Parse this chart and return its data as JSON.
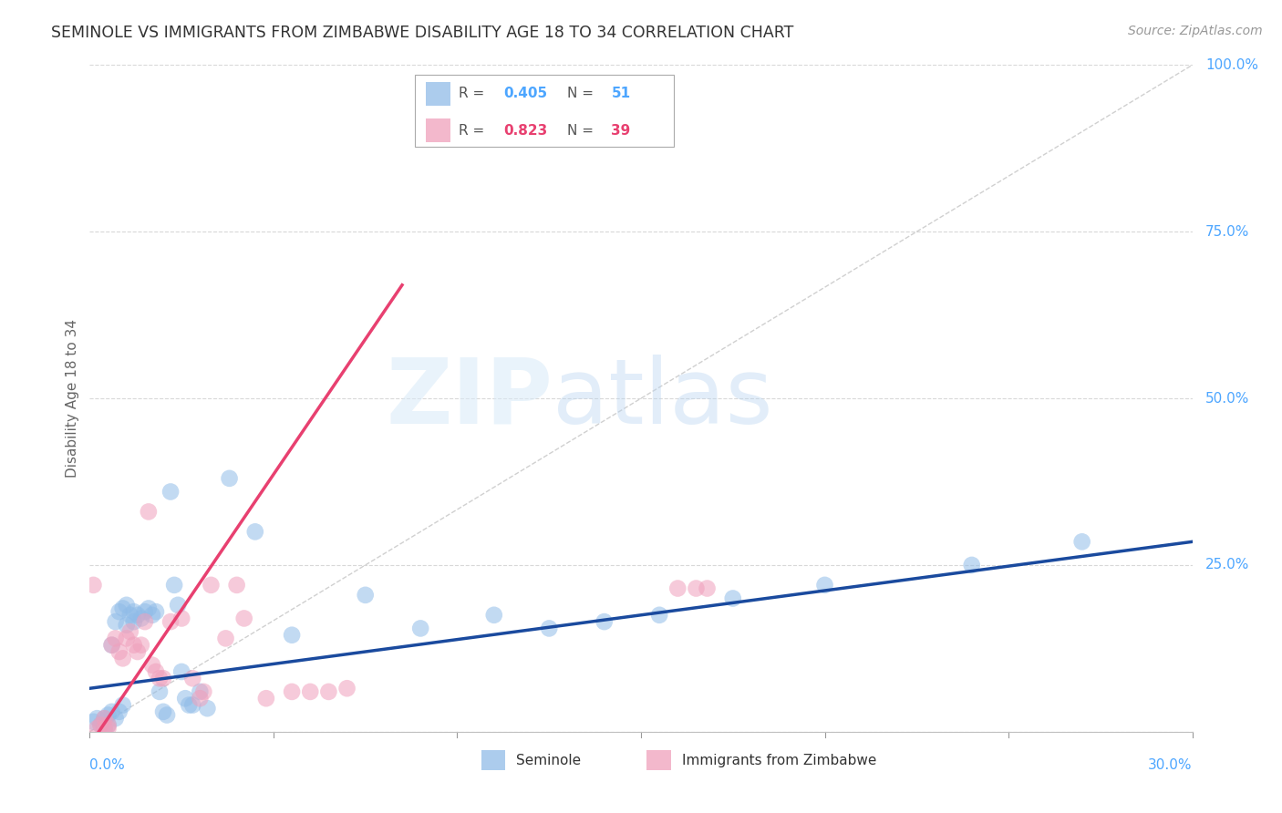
{
  "title": "SEMINOLE VS IMMIGRANTS FROM ZIMBABWE DISABILITY AGE 18 TO 34 CORRELATION CHART",
  "source": "Source: ZipAtlas.com",
  "ylabel": "Disability Age 18 to 34",
  "xlim": [
    0.0,
    0.3
  ],
  "ylim": [
    0.0,
    1.0
  ],
  "yticks": [
    0.0,
    0.25,
    0.5,
    0.75,
    1.0
  ],
  "seminole_color": "#90bce8",
  "zimbabwe_color": "#f0a0bc",
  "seminole_line_color": "#1a4a9e",
  "zimbabwe_line_color": "#e84070",
  "ref_line_color": "#c8c8c8",
  "watermark_zip": "ZIP",
  "watermark_atlas": "atlas",
  "background_color": "#ffffff",
  "grid_color": "#d8d8d8",
  "title_color": "#333333",
  "axis_label_color": "#666666",
  "tick_color": "#4da6ff",
  "seminole_R": "0.405",
  "seminole_N": "51",
  "zimbabwe_R": "0.823",
  "zimbabwe_N": "39",
  "seminole_points": [
    [
      0.001,
      0.015
    ],
    [
      0.002,
      0.02
    ],
    [
      0.003,
      0.01
    ],
    [
      0.004,
      0.02
    ],
    [
      0.004,
      0.005
    ],
    [
      0.005,
      0.01
    ],
    [
      0.005,
      0.025
    ],
    [
      0.006,
      0.03
    ],
    [
      0.006,
      0.13
    ],
    [
      0.007,
      0.02
    ],
    [
      0.007,
      0.165
    ],
    [
      0.008,
      0.03
    ],
    [
      0.008,
      0.18
    ],
    [
      0.009,
      0.04
    ],
    [
      0.009,
      0.185
    ],
    [
      0.01,
      0.19
    ],
    [
      0.01,
      0.16
    ],
    [
      0.011,
      0.175
    ],
    [
      0.012,
      0.18
    ],
    [
      0.012,
      0.165
    ],
    [
      0.013,
      0.175
    ],
    [
      0.014,
      0.17
    ],
    [
      0.015,
      0.18
    ],
    [
      0.016,
      0.185
    ],
    [
      0.017,
      0.175
    ],
    [
      0.018,
      0.18
    ],
    [
      0.019,
      0.06
    ],
    [
      0.02,
      0.03
    ],
    [
      0.021,
      0.025
    ],
    [
      0.022,
      0.36
    ],
    [
      0.023,
      0.22
    ],
    [
      0.024,
      0.19
    ],
    [
      0.025,
      0.09
    ],
    [
      0.026,
      0.05
    ],
    [
      0.027,
      0.04
    ],
    [
      0.028,
      0.04
    ],
    [
      0.03,
      0.06
    ],
    [
      0.032,
      0.035
    ],
    [
      0.038,
      0.38
    ],
    [
      0.045,
      0.3
    ],
    [
      0.055,
      0.145
    ],
    [
      0.075,
      0.205
    ],
    [
      0.09,
      0.155
    ],
    [
      0.11,
      0.175
    ],
    [
      0.125,
      0.155
    ],
    [
      0.14,
      0.165
    ],
    [
      0.155,
      0.175
    ],
    [
      0.175,
      0.2
    ],
    [
      0.2,
      0.22
    ],
    [
      0.24,
      0.25
    ],
    [
      0.27,
      0.285
    ]
  ],
  "zimbabwe_points": [
    [
      0.001,
      0.22
    ],
    [
      0.002,
      0.005
    ],
    [
      0.003,
      0.01
    ],
    [
      0.004,
      0.005
    ],
    [
      0.004,
      0.02
    ],
    [
      0.005,
      0.005
    ],
    [
      0.005,
      0.01
    ],
    [
      0.006,
      0.13
    ],
    [
      0.007,
      0.14
    ],
    [
      0.008,
      0.12
    ],
    [
      0.009,
      0.11
    ],
    [
      0.01,
      0.14
    ],
    [
      0.011,
      0.15
    ],
    [
      0.012,
      0.13
    ],
    [
      0.013,
      0.12
    ],
    [
      0.014,
      0.13
    ],
    [
      0.015,
      0.165
    ],
    [
      0.016,
      0.33
    ],
    [
      0.017,
      0.1
    ],
    [
      0.018,
      0.09
    ],
    [
      0.019,
      0.08
    ],
    [
      0.02,
      0.08
    ],
    [
      0.022,
      0.165
    ],
    [
      0.025,
      0.17
    ],
    [
      0.028,
      0.08
    ],
    [
      0.03,
      0.05
    ],
    [
      0.031,
      0.06
    ],
    [
      0.033,
      0.22
    ],
    [
      0.037,
      0.14
    ],
    [
      0.04,
      0.22
    ],
    [
      0.042,
      0.17
    ],
    [
      0.048,
      0.05
    ],
    [
      0.055,
      0.06
    ],
    [
      0.06,
      0.06
    ],
    [
      0.065,
      0.06
    ],
    [
      0.07,
      0.065
    ],
    [
      0.16,
      0.215
    ],
    [
      0.165,
      0.215
    ],
    [
      0.168,
      0.215
    ]
  ]
}
